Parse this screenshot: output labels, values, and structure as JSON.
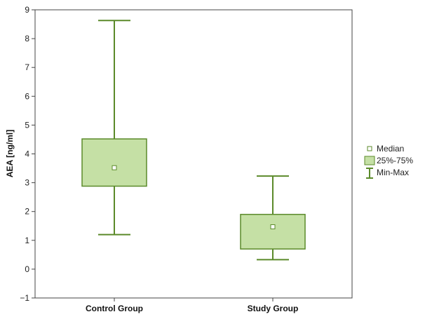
{
  "chart_data": {
    "type": "box",
    "ylabel": "AEA [ng/ml]",
    "xlabel": "",
    "ylim": [
      -1,
      9
    ],
    "yticks": [
      -1,
      0,
      1,
      2,
      3,
      4,
      5,
      6,
      7,
      8,
      9
    ],
    "categories": [
      "Control Group",
      "Study Group"
    ],
    "boxes": [
      {
        "category": "Control Group",
        "min": 1.2,
        "q1": 2.88,
        "median": 3.52,
        "q3": 4.52,
        "max": 8.63
      },
      {
        "category": "Study Group",
        "min": 0.33,
        "q1": 0.7,
        "median": 1.47,
        "q3": 1.9,
        "max": 3.23
      }
    ],
    "legend": {
      "placement": "right",
      "items": [
        {
          "label": "Median",
          "symbol": "square-marker"
        },
        {
          "label": "25%-75%",
          "symbol": "box"
        },
        {
          "label": "Min-Max",
          "symbol": "whisker"
        }
      ]
    },
    "colors": {
      "fill": "#c5e0a5",
      "stroke": "#5b8a2a"
    }
  }
}
